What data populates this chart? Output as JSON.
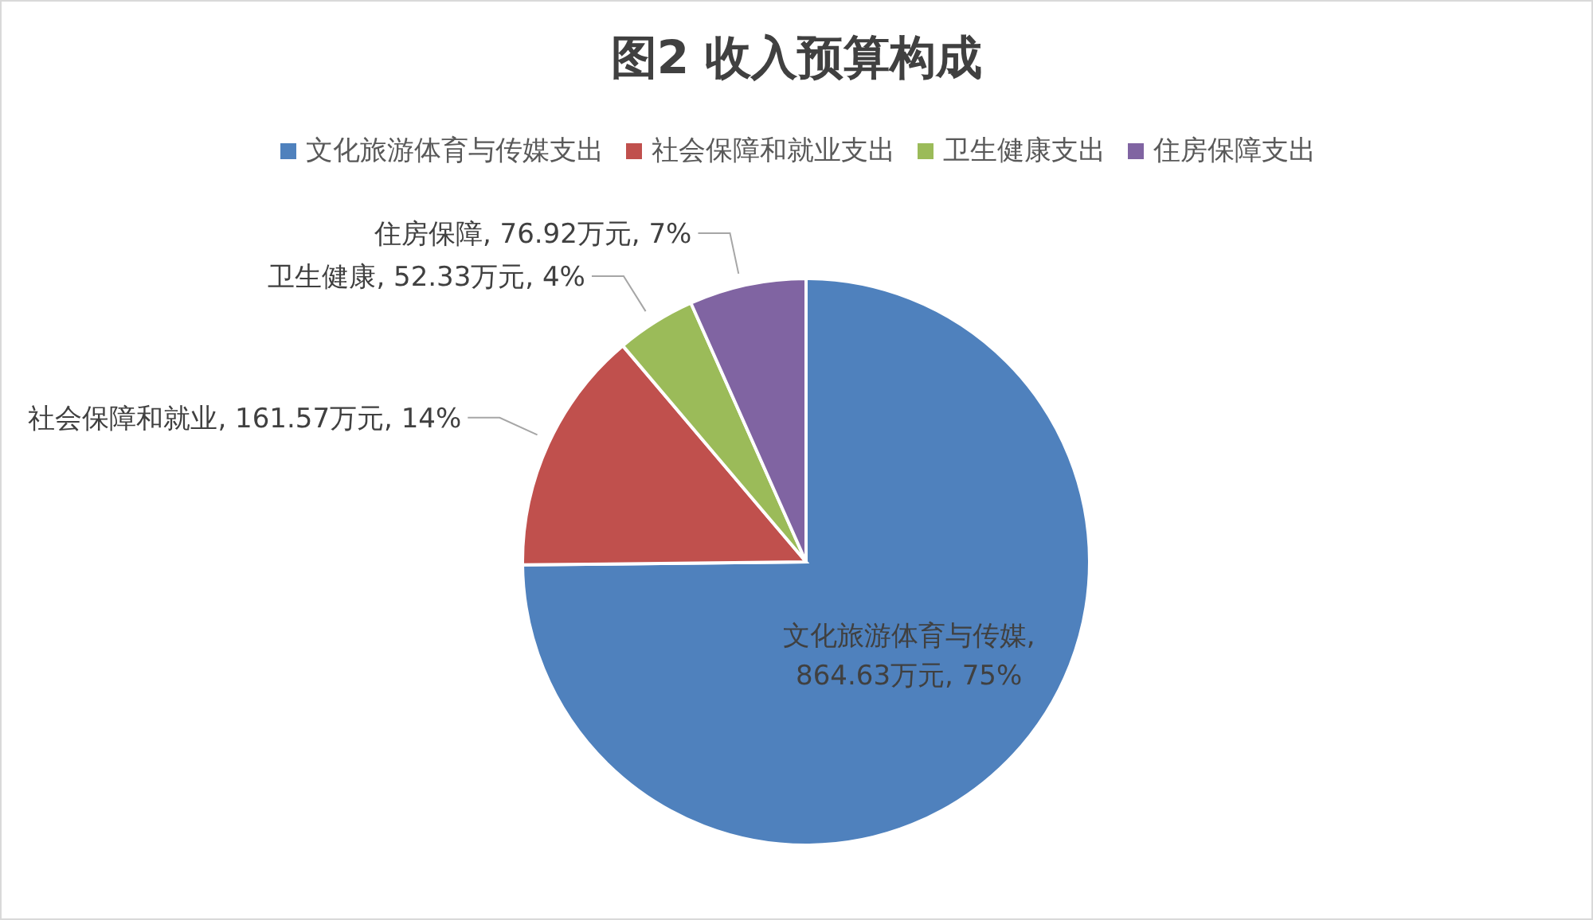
{
  "chart_data": {
    "type": "pie",
    "title": "图2 收入预算构成",
    "categories": [
      "文化旅游体育与传媒支出",
      "社会保障和就业支出",
      "卫生健康支出",
      "住房保障支出"
    ],
    "values": [
      864.63,
      161.57,
      52.33,
      76.92
    ],
    "colors": [
      "#4f81bd",
      "#c0504d",
      "#9bbb59",
      "#8064a2"
    ],
    "value_labels": [
      "文化旅游体育与传媒, 864.63万元, 75%",
      "社会保障和就业, 161.57万元, 14%",
      "卫生健康, 52.33万元, 4%",
      "住房保障, 76.92万元, 7%"
    ],
    "legend": "top"
  }
}
